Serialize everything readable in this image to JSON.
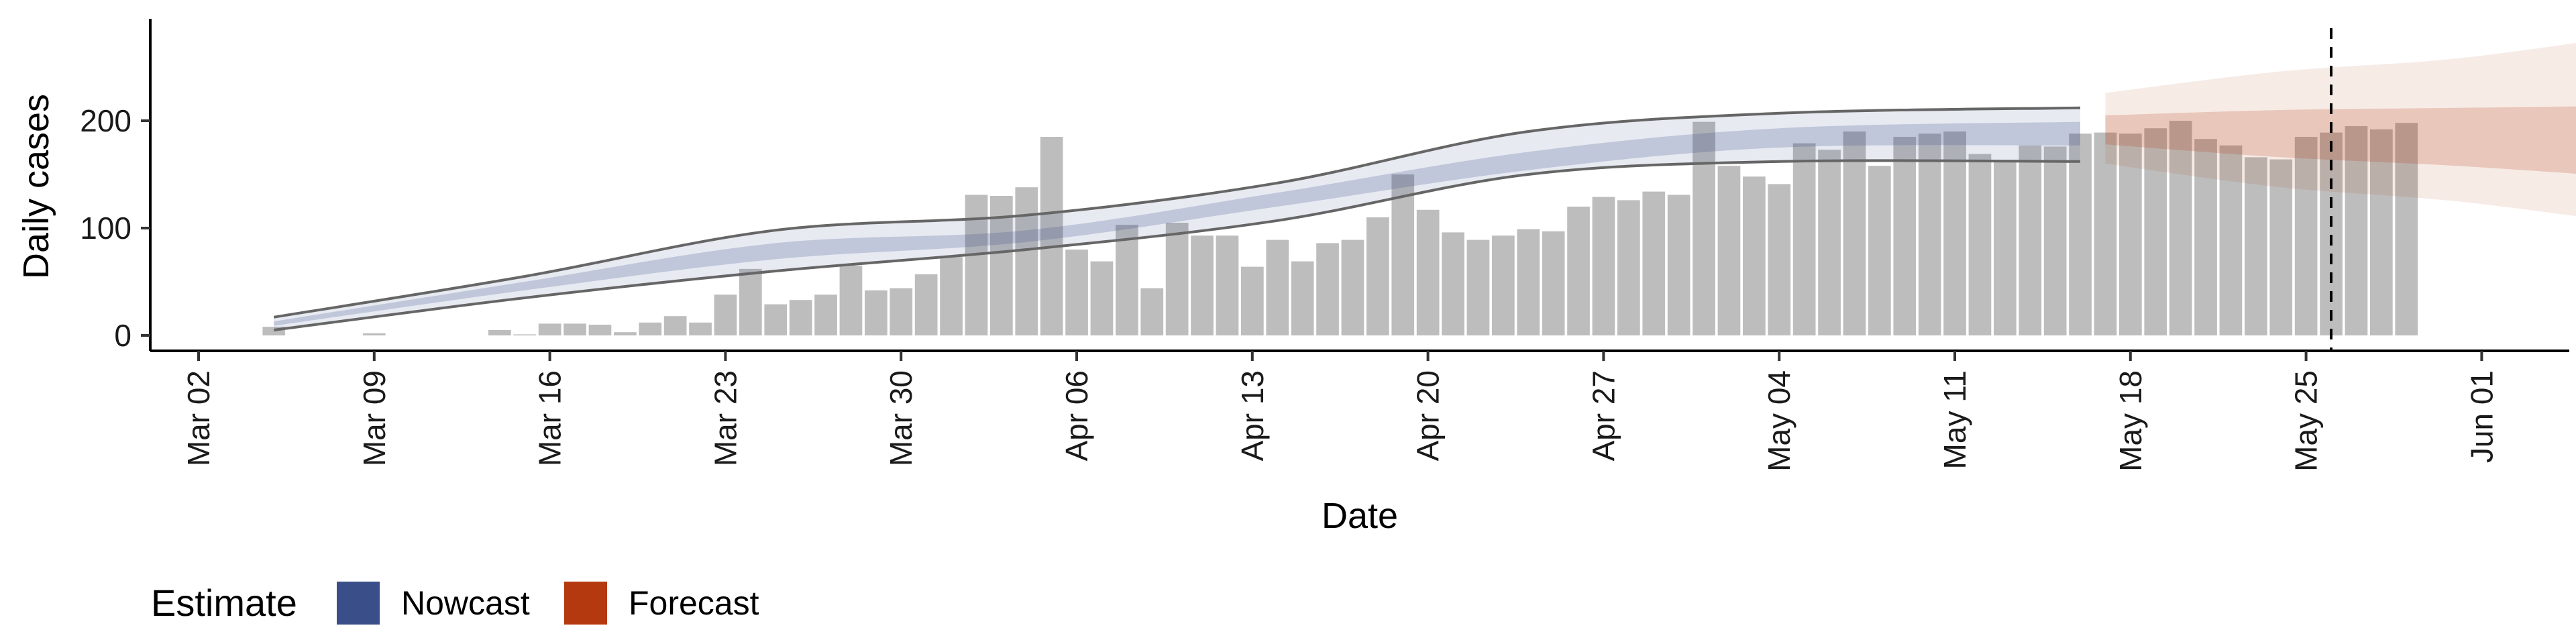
{
  "chart_data": {
    "type": "bar",
    "title": "",
    "xlabel": "Date",
    "ylabel": "Daily cases",
    "ylim": [
      -14,
      295
    ],
    "y_ticks": [
      0,
      100,
      200
    ],
    "x_ticks": [
      "Mar 02",
      "Mar 09",
      "Mar 16",
      "Mar 23",
      "Mar 30",
      "Apr 06",
      "Apr 13",
      "Apr 20",
      "Apr 27",
      "May 04",
      "May 11",
      "May 18",
      "May 25",
      "Jun 01"
    ],
    "first_date": "Mar 05",
    "reference_line_date": "May 26",
    "colors": {
      "bar": "#bdbdbd",
      "nowcast": "#3a4f8a",
      "forecast": "#b5390e",
      "band_line": "#666666",
      "reference_line": "#000000"
    },
    "bars": [
      8,
      0,
      0,
      0,
      2,
      0,
      0,
      0,
      0,
      5,
      1,
      11,
      11,
      10,
      3,
      12,
      18,
      12,
      38,
      62,
      29,
      33,
      38,
      65,
      42,
      44,
      57,
      73,
      131,
      130,
      138,
      185,
      80,
      69,
      103,
      44,
      105,
      93,
      93,
      64,
      89,
      69,
      86,
      89,
      110,
      150,
      117,
      96,
      89,
      93,
      99,
      97,
      120,
      129,
      126,
      134,
      131,
      199,
      158,
      148,
      141,
      179,
      173,
      190,
      158,
      185,
      188,
      190,
      169,
      163,
      177,
      176,
      188,
      189,
      188,
      193,
      200,
      183,
      177,
      166,
      164,
      185,
      189,
      195,
      192,
      198
    ],
    "nowcast": {
      "days": [
        0,
        10,
        20,
        30,
        40,
        50,
        60,
        72
      ],
      "outer_upper": [
        17,
        55,
        98,
        112,
        142,
        190,
        207,
        212
      ],
      "inner_upper": [
        13,
        50,
        86,
        98,
        133,
        171,
        193,
        199
      ],
      "median": [
        11,
        46,
        78,
        92,
        127,
        162,
        183,
        187
      ],
      "inner_lower": [
        9,
        42,
        71,
        87,
        120,
        154,
        175,
        177
      ],
      "outer_lower": [
        5,
        35,
        60,
        80,
        107,
        150,
        162,
        162
      ]
    },
    "forecast": {
      "days": [
        73,
        80,
        87,
        94
      ],
      "outer_upper": [
        226,
        246,
        258,
        280
      ],
      "inner_upper": [
        205,
        210,
        212,
        214
      ],
      "median": [
        192,
        185,
        180,
        178
      ],
      "inner_lower": [
        178,
        166,
        158,
        147
      ],
      "outer_lower": [
        160,
        138,
        125,
        104
      ]
    },
    "legend": {
      "position": "bottom-left",
      "title": "Estimate",
      "entries": [
        {
          "label": "Nowcast",
          "color": "#3a4f8a"
        },
        {
          "label": "Forecast",
          "color": "#b5390e"
        }
      ]
    }
  }
}
